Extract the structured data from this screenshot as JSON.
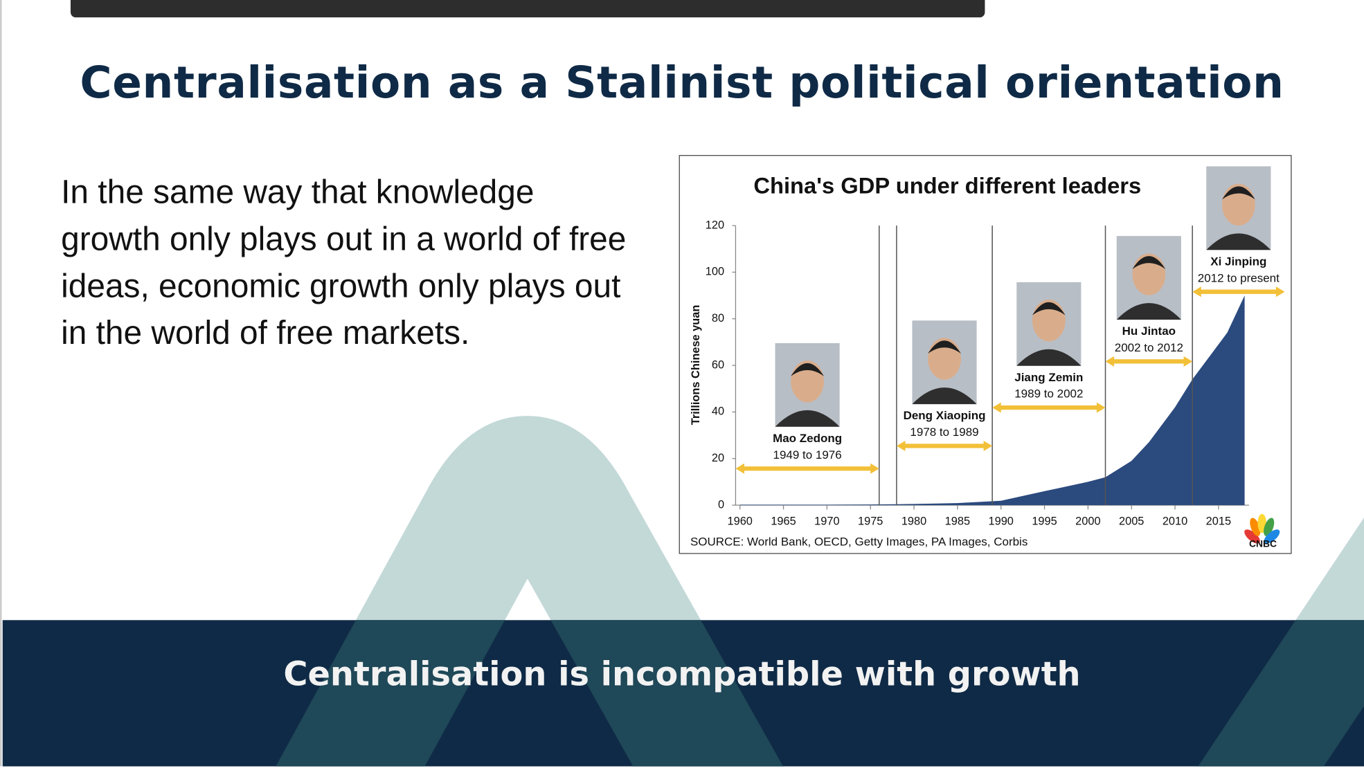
{
  "slide": {
    "title": "Centralisation as a Stalinist political orientation",
    "body": "In the same way that knowledge growth only plays out in a world of free ideas, economic growth only plays out in the world of free markets.",
    "footer": "Centralisation is incompatible with growth"
  },
  "chart_data": {
    "type": "area",
    "title": "China's GDP under different leaders",
    "y_label": "Trillions Chinese yuan",
    "source": "SOURCE: World Bank, OECD, Getty Images, PA Images, Corbis",
    "logo": "CNBC",
    "color": "#2b4a7e",
    "x": [
      1960,
      1965,
      1970,
      1975,
      1978,
      1980,
      1985,
      1990,
      1995,
      2000,
      2002,
      2005,
      2007,
      2008,
      2010,
      2012,
      2014,
      2016,
      2018
    ],
    "values": [
      0.2,
      0.2,
      0.2,
      0.3,
      0.4,
      0.5,
      0.9,
      1.9,
      6,
      10,
      12,
      19,
      27,
      32,
      42,
      54,
      64,
      74,
      90
    ],
    "xlim": [
      1959.5,
      2018.5
    ],
    "xticks": [
      1960,
      1965,
      1970,
      1975,
      1980,
      1985,
      1990,
      1995,
      2000,
      2005,
      2010,
      2015
    ],
    "ylim": [
      0,
      120
    ],
    "yticks": [
      0,
      20,
      40,
      60,
      80,
      100,
      120
    ],
    "boundaries": [
      1976,
      1978,
      1989,
      2002,
      2012
    ],
    "leaders": [
      {
        "name": "Mao Zedong",
        "period": "1949 to 1976"
      },
      {
        "name": "Deng Xiaoping",
        "period": "1978 to 1989"
      },
      {
        "name": "Jiang Zemin",
        "period": "1989 to 2002"
      },
      {
        "name": "Hu Jintao",
        "period": "2002 to 2012"
      },
      {
        "name": "Xi Jinping",
        "period": "2012 to present"
      }
    ]
  }
}
